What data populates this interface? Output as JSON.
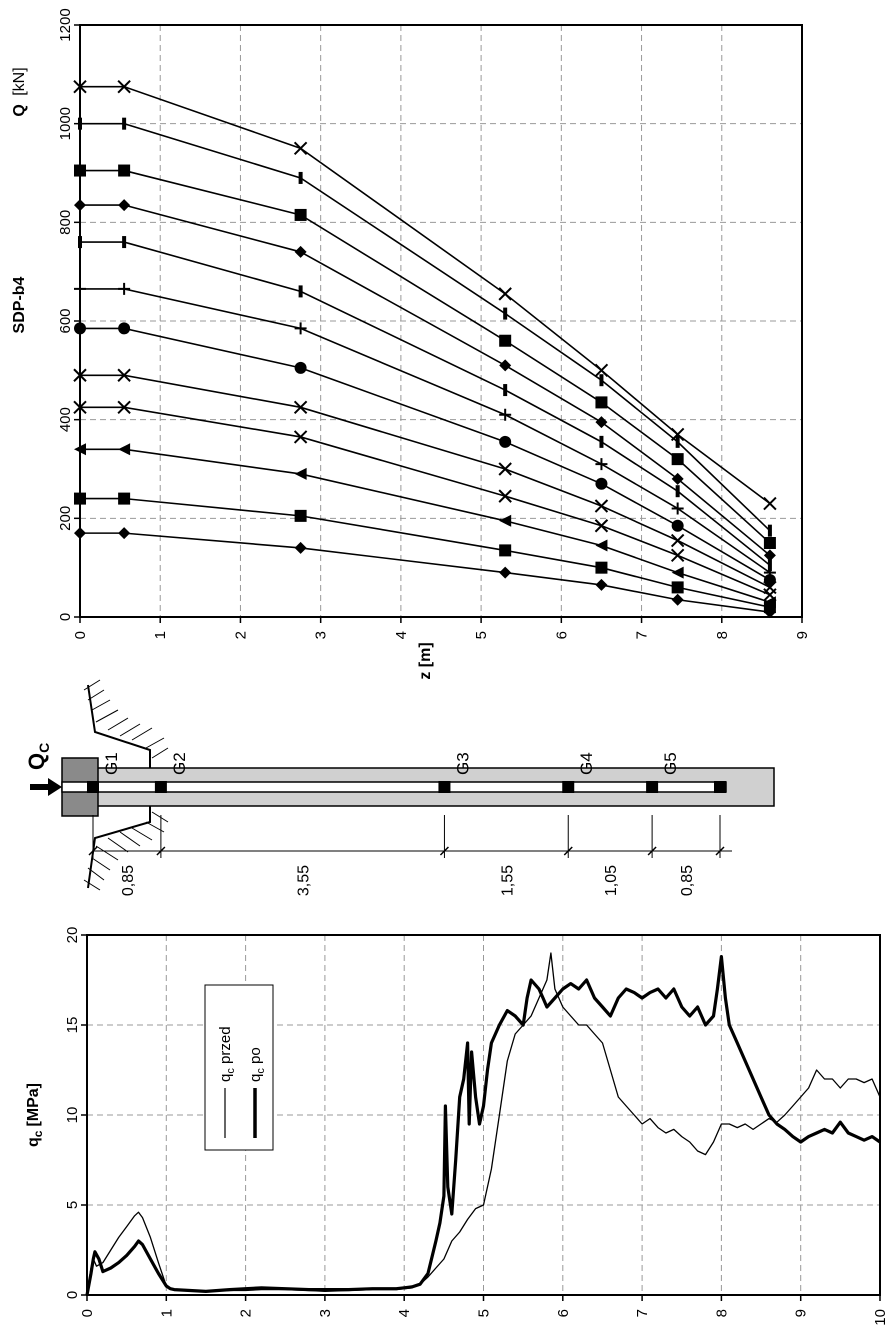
{
  "chart_data": [
    {
      "type": "line",
      "title": "SDP-b4",
      "xlabel": "z [m]",
      "ylabel_main": "Q",
      "ylabel_unit": "[kN]",
      "xlim": [
        0,
        9
      ],
      "ylim": [
        0,
        1200
      ],
      "x_ticks": [
        "0",
        "1",
        "2",
        "3",
        "4",
        "5",
        "6",
        "7",
        "8",
        "9"
      ],
      "y_ticks": [
        "0",
        "200",
        "400",
        "600",
        "800",
        "1000",
        "1200"
      ],
      "grid": true,
      "x": [
        0,
        0.55,
        2.75,
        5.3,
        6.5,
        7.45,
        8.6
      ],
      "series": [
        {
          "marker": "diamond",
          "values": [
            170,
            170,
            140,
            90,
            65,
            35,
            10
          ]
        },
        {
          "marker": "square",
          "values": [
            240,
            240,
            205,
            135,
            100,
            60,
            20
          ]
        },
        {
          "marker": "triangle",
          "values": [
            340,
            340,
            290,
            195,
            145,
            90,
            30
          ]
        },
        {
          "marker": "x",
          "values": [
            425,
            425,
            365,
            245,
            185,
            125,
            45
          ]
        },
        {
          "marker": "x",
          "values": [
            490,
            490,
            425,
            300,
            225,
            155,
            60
          ]
        },
        {
          "marker": "circle",
          "values": [
            585,
            585,
            505,
            355,
            270,
            185,
            75
          ]
        },
        {
          "marker": "plus",
          "values": [
            665,
            665,
            585,
            410,
            310,
            220,
            90
          ]
        },
        {
          "marker": "dash",
          "values": [
            760,
            760,
            660,
            460,
            355,
            255,
            105
          ]
        },
        {
          "marker": "diamond",
          "values": [
            835,
            835,
            740,
            510,
            395,
            280,
            125
          ]
        },
        {
          "marker": "square",
          "values": [
            905,
            905,
            815,
            560,
            435,
            320,
            150
          ]
        },
        {
          "marker": "dash",
          "values": [
            1000,
            1000,
            890,
            615,
            480,
            355,
            175
          ]
        },
        {
          "marker": "x",
          "values": [
            1075,
            1075,
            950,
            655,
            500,
            370,
            230
          ]
        }
      ]
    },
    {
      "type": "line",
      "xlabel": "",
      "ylabel_main": "q",
      "ylabel_sub": "c",
      "ylabel_unit": "[MPa]",
      "xlim": [
        0,
        10
      ],
      "ylim": [
        0,
        20
      ],
      "x_ticks": [
        "0",
        "1",
        "2",
        "3",
        "4",
        "5",
        "6",
        "7",
        "8",
        "9",
        "10"
      ],
      "y_ticks": [
        "0",
        "5",
        "10",
        "15",
        "20"
      ],
      "grid": true,
      "legend_position": "top-left",
      "series": [
        {
          "name_main": "q",
          "name_sub": "c",
          "name_rest": " przed",
          "style": "thin",
          "x": [
            0,
            0.05,
            0.08,
            0.12,
            0.2,
            0.3,
            0.4,
            0.5,
            0.6,
            0.65,
            0.7,
            0.8,
            0.9,
            1.0,
            1.05,
            1.1,
            1.3,
            1.5,
            1.8,
            2.0,
            2.2,
            2.5,
            2.8,
            3.0,
            3.3,
            3.6,
            3.9,
            4.0,
            4.1,
            4.2,
            4.3,
            4.4,
            4.5,
            4.6,
            4.7,
            4.8,
            4.9,
            5.0,
            5.1,
            5.2,
            5.3,
            5.4,
            5.5,
            5.6,
            5.7,
            5.8,
            5.85,
            5.9,
            6.0,
            6.1,
            6.2,
            6.3,
            6.4,
            6.5,
            6.6,
            6.7,
            6.8,
            6.9,
            7.0,
            7.1,
            7.2,
            7.3,
            7.4,
            7.5,
            7.6,
            7.7,
            7.8,
            7.9,
            8.0,
            8.1,
            8.2,
            8.3,
            8.4,
            8.5,
            8.6,
            8.7,
            8.8,
            8.9,
            9.0,
            9.1,
            9.2,
            9.3,
            9.4,
            9.5,
            9.6,
            9.7,
            9.8,
            9.9,
            10.0
          ],
          "values": [
            0,
            1.5,
            2.0,
            1.6,
            1.8,
            2.5,
            3.2,
            3.8,
            4.4,
            4.6,
            4.3,
            3.2,
            1.8,
            0.5,
            0.35,
            0.3,
            0.25,
            0.2,
            0.25,
            0.25,
            0.3,
            0.3,
            0.25,
            0.2,
            0.25,
            0.3,
            0.3,
            0.35,
            0.4,
            0.6,
            1.0,
            1.5,
            2.0,
            3.0,
            3.5,
            4.2,
            4.8,
            5.0,
            7.0,
            10.0,
            13.0,
            14.5,
            15.0,
            15.5,
            16.5,
            17.5,
            19.0,
            17.0,
            16.0,
            15.5,
            15.0,
            15.0,
            14.5,
            14.0,
            12.5,
            11.0,
            10.5,
            10.0,
            9.5,
            9.8,
            9.3,
            9.0,
            9.2,
            8.8,
            8.5,
            8.0,
            7.8,
            8.5,
            9.5,
            9.5,
            9.3,
            9.5,
            9.2,
            9.5,
            9.8,
            9.6,
            10.0,
            10.5,
            11.0,
            11.5,
            12.5,
            12.0,
            12.0,
            11.5,
            12.0,
            12.0,
            11.8,
            12.0,
            11.0
          ]
        },
        {
          "name_main": "q",
          "name_sub": "c",
          "name_rest": " po",
          "style": "thick",
          "x": [
            0,
            0.05,
            0.08,
            0.1,
            0.15,
            0.2,
            0.3,
            0.4,
            0.5,
            0.6,
            0.65,
            0.7,
            0.8,
            0.9,
            1.0,
            1.05,
            1.1,
            1.3,
            1.5,
            1.8,
            2.0,
            2.2,
            2.5,
            2.8,
            3.0,
            3.3,
            3.6,
            3.9,
            4.0,
            4.1,
            4.2,
            4.3,
            4.4,
            4.45,
            4.5,
            4.52,
            4.55,
            4.6,
            4.65,
            4.7,
            4.75,
            4.8,
            4.82,
            4.85,
            4.9,
            4.95,
            5.0,
            5.05,
            5.1,
            5.15,
            5.2,
            5.3,
            5.4,
            5.5,
            5.55,
            5.6,
            5.7,
            5.75,
            5.8,
            5.9,
            6.0,
            6.1,
            6.2,
            6.3,
            6.4,
            6.5,
            6.6,
            6.7,
            6.8,
            6.9,
            7.0,
            7.1,
            7.2,
            7.3,
            7.4,
            7.5,
            7.6,
            7.7,
            7.8,
            7.9,
            7.95,
            8.0,
            8.05,
            8.1,
            8.2,
            8.3,
            8.4,
            8.5,
            8.6,
            8.7,
            8.8,
            8.9,
            9.0,
            9.1,
            9.2,
            9.3,
            9.4,
            9.5,
            9.6,
            9.7,
            9.8,
            9.9,
            10.0
          ],
          "values": [
            0,
            1.2,
            2.0,
            2.4,
            2.0,
            1.3,
            1.5,
            1.8,
            2.2,
            2.7,
            3.0,
            2.8,
            2.0,
            1.2,
            0.5,
            0.35,
            0.3,
            0.25,
            0.2,
            0.3,
            0.35,
            0.4,
            0.35,
            0.3,
            0.3,
            0.3,
            0.35,
            0.35,
            0.4,
            0.45,
            0.6,
            1.2,
            3.0,
            4.0,
            5.5,
            10.5,
            6.0,
            4.5,
            7.5,
            11.0,
            12.0,
            14.0,
            9.5,
            13.5,
            11.0,
            9.5,
            10.5,
            12.5,
            14.0,
            14.5,
            15.0,
            15.8,
            15.5,
            15.0,
            16.5,
            17.5,
            17.0,
            16.5,
            16.0,
            16.5,
            17.0,
            17.3,
            17.0,
            17.5,
            16.5,
            16.0,
            15.5,
            16.5,
            17.0,
            16.8,
            16.5,
            16.8,
            17.0,
            16.5,
            17.0,
            16.0,
            15.5,
            16.0,
            15.0,
            15.5,
            17.0,
            18.8,
            16.5,
            15.0,
            14.0,
            13.0,
            12.0,
            11.0,
            10.0,
            9.5,
            9.2,
            8.8,
            8.5,
            8.8,
            9.0,
            9.2,
            9.0,
            9.6,
            9.0,
            8.8,
            8.6,
            8.8,
            8.5
          ]
        }
      ]
    }
  ],
  "diagram": {
    "force_label_main": "Q",
    "force_label_sub": "C",
    "gauges": [
      {
        "label": "G1",
        "pos": 0
      },
      {
        "label": "G2",
        "pos": 0.85
      },
      {
        "label": "G3",
        "pos": 4.4
      },
      {
        "label": "G4",
        "pos": 5.95
      },
      {
        "label": "G5",
        "pos": 7.0
      },
      {
        "label": "",
        "pos": 7.85
      }
    ],
    "dimensions": [
      "0,85",
      "3,55",
      "1,55",
      "1,05",
      "0,85"
    ]
  }
}
